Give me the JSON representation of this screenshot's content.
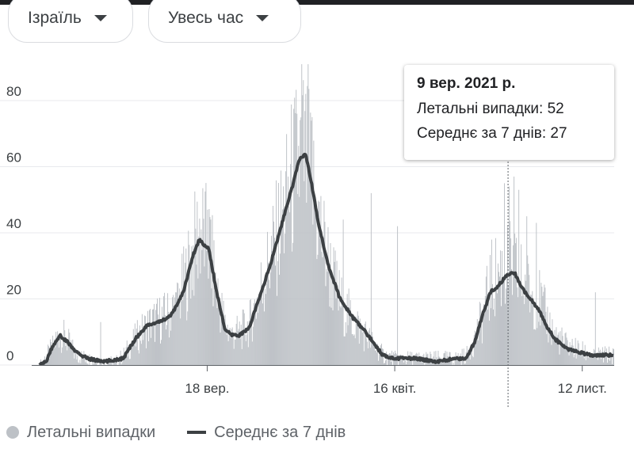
{
  "filters": {
    "country": "Ізраїль",
    "range": "Увесь час"
  },
  "tooltip": {
    "date": "9 вер. 2021 р.",
    "deaths_label": "Летальні випадки: 52",
    "avg_label": "Середнє за 7 днів: 27"
  },
  "legend": {
    "deaths": "Летальні випадки",
    "avg": "Середнє за 7 днів"
  },
  "chart_data": {
    "type": "bar",
    "overlay_type": "line",
    "x_ticks": [
      "18 вер.",
      "16 квіт.",
      "12 лист."
    ],
    "y_ticks": [
      0,
      20,
      40,
      60,
      80
    ],
    "ylim": [
      0,
      95
    ],
    "grid": true,
    "legend_position": "bottom-left",
    "colors": {
      "bars": "#bdc1c6",
      "line": "#3c4043"
    },
    "series": [
      {
        "name": "Летальні випадки",
        "type": "bar",
        "knots": [
          [
            0,
            0
          ],
          [
            15,
            5
          ],
          [
            25,
            10
          ],
          [
            35,
            7
          ],
          [
            45,
            3
          ],
          [
            60,
            2
          ],
          [
            70,
            1
          ],
          [
            95,
            1
          ],
          [
            105,
            3
          ],
          [
            120,
            8
          ],
          [
            135,
            12
          ],
          [
            150,
            14
          ],
          [
            160,
            15
          ],
          [
            172,
            18
          ],
          [
            185,
            28
          ],
          [
            200,
            41
          ],
          [
            212,
            36
          ],
          [
            222,
            22
          ],
          [
            232,
            12
          ],
          [
            240,
            9
          ],
          [
            250,
            10
          ],
          [
            262,
            12
          ],
          [
            275,
            22
          ],
          [
            290,
            33
          ],
          [
            305,
            45
          ],
          [
            315,
            55
          ],
          [
            322,
            60
          ],
          [
            330,
            63
          ],
          [
            340,
            55
          ],
          [
            350,
            42
          ],
          [
            362,
            30
          ],
          [
            375,
            20
          ],
          [
            390,
            14
          ],
          [
            405,
            10
          ],
          [
            418,
            6
          ],
          [
            430,
            3
          ],
          [
            445,
            2
          ],
          [
            470,
            2
          ],
          [
            500,
            2
          ],
          [
            520,
            2
          ],
          [
            535,
            3
          ],
          [
            545,
            8
          ],
          [
            555,
            15
          ],
          [
            565,
            25
          ],
          [
            575,
            28
          ],
          [
            585,
            30
          ],
          [
            595,
            28
          ],
          [
            605,
            25
          ],
          [
            615,
            22
          ],
          [
            625,
            20
          ],
          [
            635,
            14
          ],
          [
            645,
            9
          ],
          [
            660,
            6
          ],
          [
            670,
            5
          ],
          [
            680,
            4
          ],
          [
            690,
            3
          ],
          [
            700,
            3
          ],
          [
            710,
            3
          ]
        ],
        "spikes": [
          [
            76,
            13
          ],
          [
            170,
            22
          ],
          [
            210,
            47
          ],
          [
            214,
            44
          ],
          [
            328,
            91
          ],
          [
            336,
            91
          ],
          [
            341,
            75
          ],
          [
            380,
            44
          ],
          [
            415,
            52
          ],
          [
            448,
            42
          ],
          [
            582,
            55
          ],
          [
            588,
            54
          ],
          [
            594,
            57
          ],
          [
            600,
            53
          ],
          [
            610,
            45
          ],
          [
            622,
            43
          ],
          [
            696,
            22
          ]
        ]
      },
      {
        "name": "Середнє за 7 днів",
        "type": "line",
        "knots": [
          [
            0,
            0
          ],
          [
            8,
            1
          ],
          [
            15,
            5
          ],
          [
            25,
            9
          ],
          [
            35,
            7
          ],
          [
            45,
            4
          ],
          [
            60,
            2
          ],
          [
            80,
            1
          ],
          [
            105,
            2
          ],
          [
            120,
            8
          ],
          [
            135,
            12
          ],
          [
            150,
            13
          ],
          [
            165,
            15
          ],
          [
            180,
            22
          ],
          [
            192,
            33
          ],
          [
            200,
            38
          ],
          [
            212,
            35
          ],
          [
            222,
            22
          ],
          [
            232,
            11
          ],
          [
            240,
            9
          ],
          [
            250,
            9
          ],
          [
            262,
            11
          ],
          [
            275,
            20
          ],
          [
            290,
            31
          ],
          [
            305,
            44
          ],
          [
            318,
            55
          ],
          [
            325,
            62
          ],
          [
            333,
            64
          ],
          [
            340,
            56
          ],
          [
            350,
            42
          ],
          [
            362,
            30
          ],
          [
            375,
            21
          ],
          [
            390,
            15
          ],
          [
            405,
            11
          ],
          [
            418,
            7
          ],
          [
            430,
            3
          ],
          [
            445,
            2
          ],
          [
            470,
            2
          ],
          [
            500,
            1
          ],
          [
            520,
            2
          ],
          [
            535,
            2
          ],
          [
            545,
            7
          ],
          [
            555,
            15
          ],
          [
            565,
            22
          ],
          [
            575,
            24
          ],
          [
            585,
            27
          ],
          [
            595,
            28
          ],
          [
            605,
            23
          ],
          [
            612,
            21
          ],
          [
            625,
            17
          ],
          [
            635,
            12
          ],
          [
            645,
            8
          ],
          [
            660,
            5
          ],
          [
            675,
            4
          ],
          [
            690,
            3
          ],
          [
            700,
            3
          ],
          [
            710,
            3
          ]
        ]
      }
    ]
  }
}
